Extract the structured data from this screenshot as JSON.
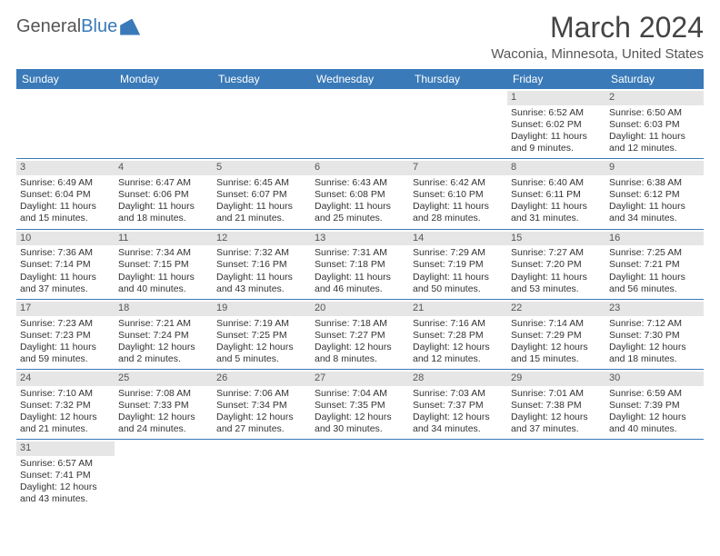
{
  "brand": {
    "part1": "General",
    "part2": "Blue"
  },
  "title": "March 2024",
  "location": "Waconia, Minnesota, United States",
  "colors": {
    "header_bg": "#3a7ab8",
    "daynum_bg": "#e6e6e6",
    "text": "#333333",
    "divider": "#3a7ab8",
    "page_bg": "#ffffff"
  },
  "dayHeaders": [
    "Sunday",
    "Monday",
    "Tuesday",
    "Wednesday",
    "Thursday",
    "Friday",
    "Saturday"
  ],
  "weeks": [
    [
      null,
      null,
      null,
      null,
      null,
      {
        "n": "1",
        "sr": "Sunrise: 6:52 AM",
        "ss": "Sunset: 6:02 PM",
        "d1": "Daylight: 11 hours",
        "d2": "and 9 minutes."
      },
      {
        "n": "2",
        "sr": "Sunrise: 6:50 AM",
        "ss": "Sunset: 6:03 PM",
        "d1": "Daylight: 11 hours",
        "d2": "and 12 minutes."
      }
    ],
    [
      {
        "n": "3",
        "sr": "Sunrise: 6:49 AM",
        "ss": "Sunset: 6:04 PM",
        "d1": "Daylight: 11 hours",
        "d2": "and 15 minutes."
      },
      {
        "n": "4",
        "sr": "Sunrise: 6:47 AM",
        "ss": "Sunset: 6:06 PM",
        "d1": "Daylight: 11 hours",
        "d2": "and 18 minutes."
      },
      {
        "n": "5",
        "sr": "Sunrise: 6:45 AM",
        "ss": "Sunset: 6:07 PM",
        "d1": "Daylight: 11 hours",
        "d2": "and 21 minutes."
      },
      {
        "n": "6",
        "sr": "Sunrise: 6:43 AM",
        "ss": "Sunset: 6:08 PM",
        "d1": "Daylight: 11 hours",
        "d2": "and 25 minutes."
      },
      {
        "n": "7",
        "sr": "Sunrise: 6:42 AM",
        "ss": "Sunset: 6:10 PM",
        "d1": "Daylight: 11 hours",
        "d2": "and 28 minutes."
      },
      {
        "n": "8",
        "sr": "Sunrise: 6:40 AM",
        "ss": "Sunset: 6:11 PM",
        "d1": "Daylight: 11 hours",
        "d2": "and 31 minutes."
      },
      {
        "n": "9",
        "sr": "Sunrise: 6:38 AM",
        "ss": "Sunset: 6:12 PM",
        "d1": "Daylight: 11 hours",
        "d2": "and 34 minutes."
      }
    ],
    [
      {
        "n": "10",
        "sr": "Sunrise: 7:36 AM",
        "ss": "Sunset: 7:14 PM",
        "d1": "Daylight: 11 hours",
        "d2": "and 37 minutes."
      },
      {
        "n": "11",
        "sr": "Sunrise: 7:34 AM",
        "ss": "Sunset: 7:15 PM",
        "d1": "Daylight: 11 hours",
        "d2": "and 40 minutes."
      },
      {
        "n": "12",
        "sr": "Sunrise: 7:32 AM",
        "ss": "Sunset: 7:16 PM",
        "d1": "Daylight: 11 hours",
        "d2": "and 43 minutes."
      },
      {
        "n": "13",
        "sr": "Sunrise: 7:31 AM",
        "ss": "Sunset: 7:18 PM",
        "d1": "Daylight: 11 hours",
        "d2": "and 46 minutes."
      },
      {
        "n": "14",
        "sr": "Sunrise: 7:29 AM",
        "ss": "Sunset: 7:19 PM",
        "d1": "Daylight: 11 hours",
        "d2": "and 50 minutes."
      },
      {
        "n": "15",
        "sr": "Sunrise: 7:27 AM",
        "ss": "Sunset: 7:20 PM",
        "d1": "Daylight: 11 hours",
        "d2": "and 53 minutes."
      },
      {
        "n": "16",
        "sr": "Sunrise: 7:25 AM",
        "ss": "Sunset: 7:21 PM",
        "d1": "Daylight: 11 hours",
        "d2": "and 56 minutes."
      }
    ],
    [
      {
        "n": "17",
        "sr": "Sunrise: 7:23 AM",
        "ss": "Sunset: 7:23 PM",
        "d1": "Daylight: 11 hours",
        "d2": "and 59 minutes."
      },
      {
        "n": "18",
        "sr": "Sunrise: 7:21 AM",
        "ss": "Sunset: 7:24 PM",
        "d1": "Daylight: 12 hours",
        "d2": "and 2 minutes."
      },
      {
        "n": "19",
        "sr": "Sunrise: 7:19 AM",
        "ss": "Sunset: 7:25 PM",
        "d1": "Daylight: 12 hours",
        "d2": "and 5 minutes."
      },
      {
        "n": "20",
        "sr": "Sunrise: 7:18 AM",
        "ss": "Sunset: 7:27 PM",
        "d1": "Daylight: 12 hours",
        "d2": "and 8 minutes."
      },
      {
        "n": "21",
        "sr": "Sunrise: 7:16 AM",
        "ss": "Sunset: 7:28 PM",
        "d1": "Daylight: 12 hours",
        "d2": "and 12 minutes."
      },
      {
        "n": "22",
        "sr": "Sunrise: 7:14 AM",
        "ss": "Sunset: 7:29 PM",
        "d1": "Daylight: 12 hours",
        "d2": "and 15 minutes."
      },
      {
        "n": "23",
        "sr": "Sunrise: 7:12 AM",
        "ss": "Sunset: 7:30 PM",
        "d1": "Daylight: 12 hours",
        "d2": "and 18 minutes."
      }
    ],
    [
      {
        "n": "24",
        "sr": "Sunrise: 7:10 AM",
        "ss": "Sunset: 7:32 PM",
        "d1": "Daylight: 12 hours",
        "d2": "and 21 minutes."
      },
      {
        "n": "25",
        "sr": "Sunrise: 7:08 AM",
        "ss": "Sunset: 7:33 PM",
        "d1": "Daylight: 12 hours",
        "d2": "and 24 minutes."
      },
      {
        "n": "26",
        "sr": "Sunrise: 7:06 AM",
        "ss": "Sunset: 7:34 PM",
        "d1": "Daylight: 12 hours",
        "d2": "and 27 minutes."
      },
      {
        "n": "27",
        "sr": "Sunrise: 7:04 AM",
        "ss": "Sunset: 7:35 PM",
        "d1": "Daylight: 12 hours",
        "d2": "and 30 minutes."
      },
      {
        "n": "28",
        "sr": "Sunrise: 7:03 AM",
        "ss": "Sunset: 7:37 PM",
        "d1": "Daylight: 12 hours",
        "d2": "and 34 minutes."
      },
      {
        "n": "29",
        "sr": "Sunrise: 7:01 AM",
        "ss": "Sunset: 7:38 PM",
        "d1": "Daylight: 12 hours",
        "d2": "and 37 minutes."
      },
      {
        "n": "30",
        "sr": "Sunrise: 6:59 AM",
        "ss": "Sunset: 7:39 PM",
        "d1": "Daylight: 12 hours",
        "d2": "and 40 minutes."
      }
    ],
    [
      {
        "n": "31",
        "sr": "Sunrise: 6:57 AM",
        "ss": "Sunset: 7:41 PM",
        "d1": "Daylight: 12 hours",
        "d2": "and 43 minutes."
      },
      null,
      null,
      null,
      null,
      null,
      null
    ]
  ]
}
